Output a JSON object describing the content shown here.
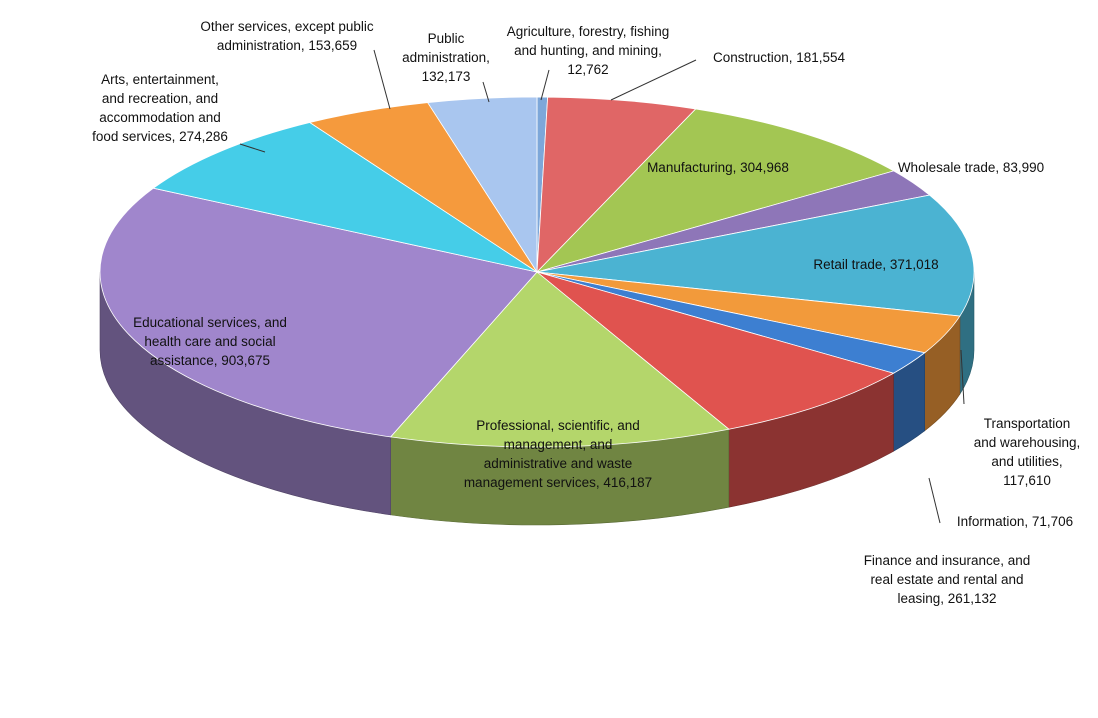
{
  "chart_data": {
    "type": "pie",
    "title": "",
    "slices": [
      {
        "name": "Agriculture, forestry, fishing\nand hunting, and mining,\n12,762",
        "value": 12762,
        "color": "#7da7d9"
      },
      {
        "name": "Construction, 181,554",
        "value": 181554,
        "color": "#e06666"
      },
      {
        "name": "Manufacturing, 304,968",
        "value": 304968,
        "color": "#a3c653"
      },
      {
        "name": "Wholesale trade, 83,990",
        "value": 83990,
        "color": "#8e76b8"
      },
      {
        "name": "Retail trade, 371,018",
        "value": 371018,
        "color": "#4bb3d2"
      },
      {
        "name": "Transportation\nand warehousing,\nand utilities,\n117,610",
        "value": 117610,
        "color": "#f29a3b"
      },
      {
        "name": "Information, 71,706",
        "value": 71706,
        "color": "#3d7fd1"
      },
      {
        "name": "Finance and insurance, and\nreal estate and rental and\nleasing, 261,132",
        "value": 261132,
        "color": "#e0534f"
      },
      {
        "name": "Professional, scientific, and\nmanagement, and\nadministrative and waste\nmanagement services, 416,187",
        "value": 416187,
        "color": "#b4d66b"
      },
      {
        "name": "Educational services, and\nhealth care and social\nassistance, 903,675",
        "value": 903675,
        "color": "#a086cc"
      },
      {
        "name": "Arts, entertainment,\nand recreation, and\naccommodation and\nfood services, 274,286",
        "value": 274286,
        "color": "#45cde8"
      },
      {
        "name": "Other services, except public\nadministration, 153,659",
        "value": 153659,
        "color": "#f59a3d"
      },
      {
        "name": "Public\nadministration,\n132,173",
        "value": 132173,
        "color": "#a9c6ef"
      }
    ],
    "legend": "none",
    "labels": "data labels with leader lines"
  }
}
